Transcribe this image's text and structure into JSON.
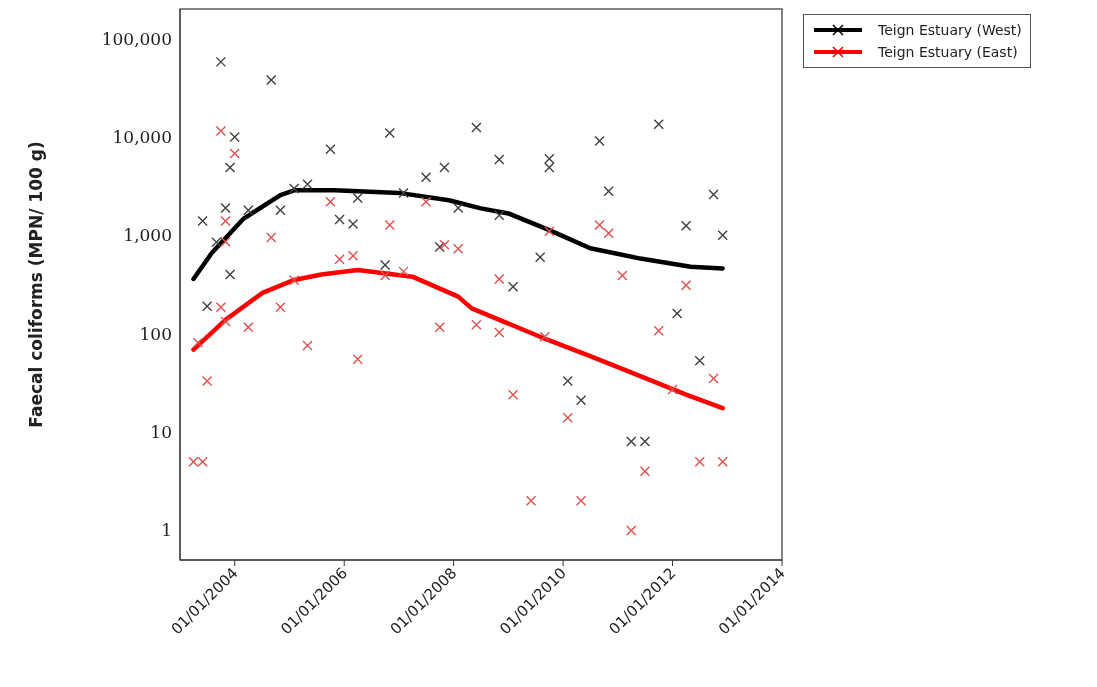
{
  "chart_data": {
    "type": "scatter",
    "ylabel": "Faecal coliforms (MPN/ 100 g)",
    "log": "y",
    "grid": false,
    "legend": "top right",
    "xlim": [
      "2003-01-01",
      "2014-01-01"
    ],
    "xticks": [
      {
        "value": "2004-01-01",
        "label": "01/01/2004"
      },
      {
        "value": "2006-01-01",
        "label": "01/01/2006"
      },
      {
        "value": "2008-01-01",
        "label": "01/01/2008"
      },
      {
        "value": "2010-01-01",
        "label": "01/01/2010"
      },
      {
        "value": "2012-01-01",
        "label": "01/01/2012"
      },
      {
        "value": "2014-01-01",
        "label": "01/01/2014"
      }
    ],
    "ylim": [
      0.5,
      200000
    ],
    "yticks": [
      1,
      10,
      100,
      {
        "value": 1000,
        "label": "1,000"
      },
      {
        "value": 10000,
        "label": "10,000"
      },
      {
        "value": 100000,
        "label": "100,000"
      }
    ],
    "series": [
      {
        "marker": "cross",
        "color": "#404040",
        "x": [
          "2003-06",
          "2003-07",
          "2003-09",
          "2003-10",
          "2003-11",
          "2003-12",
          "2003-12",
          "2004-01",
          "2004-04",
          "2004-09",
          "2004-11",
          "2005-02",
          "2005-05",
          "2005-10",
          "2005-12",
          "2006-03",
          "2006-04",
          "2006-10",
          "2006-11",
          "2007-02",
          "2007-07",
          "2007-10",
          "2007-11",
          "2008-02",
          "2008-06",
          "2008-11",
          "2008-11",
          "2009-02",
          "2009-08",
          "2009-10",
          "2009-10",
          "2010-02",
          "2010-05",
          "2010-09",
          "2010-11",
          "2011-04",
          "2011-07",
          "2011-10",
          "2012-02",
          "2012-04",
          "2012-07",
          "2012-10",
          "2012-12"
        ],
        "values": [
          1400,
          190,
          850,
          58000,
          1900,
          4900,
          400,
          10000,
          1800,
          38000,
          1800,
          3000,
          3300,
          7500,
          1450,
          1300,
          2400,
          500,
          11000,
          2700,
          3900,
          760,
          4900,
          1900,
          12500,
          5900,
          1600,
          300,
          600,
          6000,
          4900,
          33,
          21,
          9100,
          2800,
          8,
          8,
          13500,
          160,
          1250,
          53,
          2600,
          1000
        ]
      },
      {
        "marker": "cross",
        "color": "#e05050",
        "x": [
          "2003-04",
          "2003-05",
          "2003-06",
          "2003-07",
          "2003-10",
          "2003-10",
          "2003-11",
          "2003-11",
          "2003-11",
          "2004-01",
          "2004-04",
          "2004-09",
          "2004-11",
          "2005-02",
          "2005-05",
          "2005-10",
          "2005-12",
          "2006-03",
          "2006-04",
          "2006-10",
          "2006-11",
          "2007-02",
          "2007-07",
          "2007-10",
          "2007-11",
          "2008-02",
          "2008-06",
          "2008-11",
          "2008-11",
          "2009-02",
          "2009-06",
          "2009-09",
          "2009-10",
          "2010-02",
          "2010-05",
          "2010-09",
          "2010-11",
          "2011-02",
          "2011-04",
          "2011-07",
          "2011-10",
          "2012-01",
          "2012-04",
          "2012-07",
          "2012-10",
          "2012-12"
        ],
        "values": [
          5,
          81,
          5,
          33,
          11500,
          186,
          1400,
          860,
          133,
          6800,
          116,
          950,
          186,
          350,
          76,
          2200,
          570,
          620,
          55,
          390,
          1270,
          430,
          2200,
          116,
          800,
          730,
          123,
          360,
          103,
          24,
          2,
          93,
          1100,
          14,
          2,
          1270,
          1050,
          390,
          1,
          4,
          107,
          27,
          310,
          5,
          35,
          5
        ]
      },
      {
        "type": "line",
        "marker": "none",
        "name": "Teign Estuary (West)",
        "color": "#000000",
        "x": [
          "2003-04",
          "2003-08",
          "2004-03",
          "2004-11",
          "2005-02",
          "2005-11",
          "2007-01",
          "2007-12",
          "2008-07",
          "2009-01",
          "2009-10",
          "2010-07",
          "2011-06",
          "2012-05",
          "2012-12"
        ],
        "values": [
          360,
          660,
          1480,
          2560,
          2870,
          2870,
          2700,
          2270,
          1880,
          1670,
          1130,
          740,
          580,
          480,
          460
        ]
      },
      {
        "type": "line",
        "marker": "none",
        "name": "Teign Estuary (East)",
        "color": "#ff0000",
        "x": [
          "2003-04",
          "2003-11",
          "2004-07",
          "2005-02",
          "2005-08",
          "2006-04",
          "2007-04",
          "2008-02",
          "2008-05",
          "2009-08",
          "2010-07",
          "2011-06",
          "2012-04",
          "2012-12"
        ],
        "values": [
          69,
          138,
          258,
          352,
          400,
          443,
          380,
          238,
          181,
          93,
          59,
          37,
          24,
          17.5
        ]
      }
    ]
  }
}
